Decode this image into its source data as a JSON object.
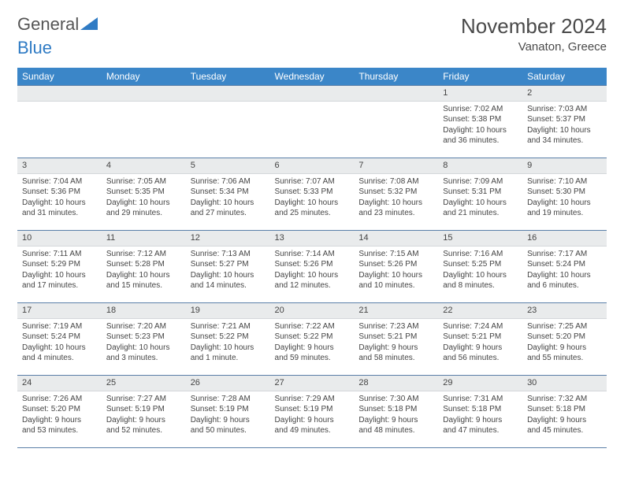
{
  "logo": {
    "part1": "General",
    "part2": "Blue"
  },
  "title": "November 2024",
  "location": "Vanaton, Greece",
  "accent_color": "#3b86c8",
  "weekdays": [
    "Sunday",
    "Monday",
    "Tuesday",
    "Wednesday",
    "Thursday",
    "Friday",
    "Saturday"
  ],
  "weeks": [
    [
      {
        "blank": true
      },
      {
        "blank": true
      },
      {
        "blank": true
      },
      {
        "blank": true
      },
      {
        "blank": true
      },
      {
        "n": "1",
        "sr": "Sunrise: 7:02 AM",
        "ss": "Sunset: 5:38 PM",
        "d1": "Daylight: 10 hours",
        "d2": "and 36 minutes."
      },
      {
        "n": "2",
        "sr": "Sunrise: 7:03 AM",
        "ss": "Sunset: 5:37 PM",
        "d1": "Daylight: 10 hours",
        "d2": "and 34 minutes."
      }
    ],
    [
      {
        "n": "3",
        "sr": "Sunrise: 7:04 AM",
        "ss": "Sunset: 5:36 PM",
        "d1": "Daylight: 10 hours",
        "d2": "and 31 minutes."
      },
      {
        "n": "4",
        "sr": "Sunrise: 7:05 AM",
        "ss": "Sunset: 5:35 PM",
        "d1": "Daylight: 10 hours",
        "d2": "and 29 minutes."
      },
      {
        "n": "5",
        "sr": "Sunrise: 7:06 AM",
        "ss": "Sunset: 5:34 PM",
        "d1": "Daylight: 10 hours",
        "d2": "and 27 minutes."
      },
      {
        "n": "6",
        "sr": "Sunrise: 7:07 AM",
        "ss": "Sunset: 5:33 PM",
        "d1": "Daylight: 10 hours",
        "d2": "and 25 minutes."
      },
      {
        "n": "7",
        "sr": "Sunrise: 7:08 AM",
        "ss": "Sunset: 5:32 PM",
        "d1": "Daylight: 10 hours",
        "d2": "and 23 minutes."
      },
      {
        "n": "8",
        "sr": "Sunrise: 7:09 AM",
        "ss": "Sunset: 5:31 PM",
        "d1": "Daylight: 10 hours",
        "d2": "and 21 minutes."
      },
      {
        "n": "9",
        "sr": "Sunrise: 7:10 AM",
        "ss": "Sunset: 5:30 PM",
        "d1": "Daylight: 10 hours",
        "d2": "and 19 minutes."
      }
    ],
    [
      {
        "n": "10",
        "sr": "Sunrise: 7:11 AM",
        "ss": "Sunset: 5:29 PM",
        "d1": "Daylight: 10 hours",
        "d2": "and 17 minutes."
      },
      {
        "n": "11",
        "sr": "Sunrise: 7:12 AM",
        "ss": "Sunset: 5:28 PM",
        "d1": "Daylight: 10 hours",
        "d2": "and 15 minutes."
      },
      {
        "n": "12",
        "sr": "Sunrise: 7:13 AM",
        "ss": "Sunset: 5:27 PM",
        "d1": "Daylight: 10 hours",
        "d2": "and 14 minutes."
      },
      {
        "n": "13",
        "sr": "Sunrise: 7:14 AM",
        "ss": "Sunset: 5:26 PM",
        "d1": "Daylight: 10 hours",
        "d2": "and 12 minutes."
      },
      {
        "n": "14",
        "sr": "Sunrise: 7:15 AM",
        "ss": "Sunset: 5:26 PM",
        "d1": "Daylight: 10 hours",
        "d2": "and 10 minutes."
      },
      {
        "n": "15",
        "sr": "Sunrise: 7:16 AM",
        "ss": "Sunset: 5:25 PM",
        "d1": "Daylight: 10 hours",
        "d2": "and 8 minutes."
      },
      {
        "n": "16",
        "sr": "Sunrise: 7:17 AM",
        "ss": "Sunset: 5:24 PM",
        "d1": "Daylight: 10 hours",
        "d2": "and 6 minutes."
      }
    ],
    [
      {
        "n": "17",
        "sr": "Sunrise: 7:19 AM",
        "ss": "Sunset: 5:24 PM",
        "d1": "Daylight: 10 hours",
        "d2": "and 4 minutes."
      },
      {
        "n": "18",
        "sr": "Sunrise: 7:20 AM",
        "ss": "Sunset: 5:23 PM",
        "d1": "Daylight: 10 hours",
        "d2": "and 3 minutes."
      },
      {
        "n": "19",
        "sr": "Sunrise: 7:21 AM",
        "ss": "Sunset: 5:22 PM",
        "d1": "Daylight: 10 hours",
        "d2": "and 1 minute."
      },
      {
        "n": "20",
        "sr": "Sunrise: 7:22 AM",
        "ss": "Sunset: 5:22 PM",
        "d1": "Daylight: 9 hours",
        "d2": "and 59 minutes."
      },
      {
        "n": "21",
        "sr": "Sunrise: 7:23 AM",
        "ss": "Sunset: 5:21 PM",
        "d1": "Daylight: 9 hours",
        "d2": "and 58 minutes."
      },
      {
        "n": "22",
        "sr": "Sunrise: 7:24 AM",
        "ss": "Sunset: 5:21 PM",
        "d1": "Daylight: 9 hours",
        "d2": "and 56 minutes."
      },
      {
        "n": "23",
        "sr": "Sunrise: 7:25 AM",
        "ss": "Sunset: 5:20 PM",
        "d1": "Daylight: 9 hours",
        "d2": "and 55 minutes."
      }
    ],
    [
      {
        "n": "24",
        "sr": "Sunrise: 7:26 AM",
        "ss": "Sunset: 5:20 PM",
        "d1": "Daylight: 9 hours",
        "d2": "and 53 minutes."
      },
      {
        "n": "25",
        "sr": "Sunrise: 7:27 AM",
        "ss": "Sunset: 5:19 PM",
        "d1": "Daylight: 9 hours",
        "d2": "and 52 minutes."
      },
      {
        "n": "26",
        "sr": "Sunrise: 7:28 AM",
        "ss": "Sunset: 5:19 PM",
        "d1": "Daylight: 9 hours",
        "d2": "and 50 minutes."
      },
      {
        "n": "27",
        "sr": "Sunrise: 7:29 AM",
        "ss": "Sunset: 5:19 PM",
        "d1": "Daylight: 9 hours",
        "d2": "and 49 minutes."
      },
      {
        "n": "28",
        "sr": "Sunrise: 7:30 AM",
        "ss": "Sunset: 5:18 PM",
        "d1": "Daylight: 9 hours",
        "d2": "and 48 minutes."
      },
      {
        "n": "29",
        "sr": "Sunrise: 7:31 AM",
        "ss": "Sunset: 5:18 PM",
        "d1": "Daylight: 9 hours",
        "d2": "and 47 minutes."
      },
      {
        "n": "30",
        "sr": "Sunrise: 7:32 AM",
        "ss": "Sunset: 5:18 PM",
        "d1": "Daylight: 9 hours",
        "d2": "and 45 minutes."
      }
    ]
  ]
}
